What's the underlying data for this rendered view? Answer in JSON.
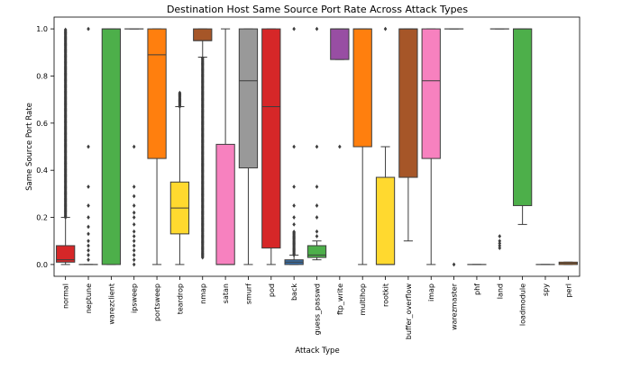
{
  "chart_data": {
    "type": "box",
    "title": "Destination Host Same Source Port Rate Across Attack Types",
    "xlabel": "Attack Type",
    "ylabel": "Same Source Port Rate",
    "ylim": [
      -0.05,
      1.05
    ],
    "yticks": [
      0.0,
      0.2,
      0.4,
      0.6,
      0.8,
      1.0
    ],
    "ytick_labels": [
      "0.0",
      "0.2",
      "0.4",
      "0.6",
      "0.8",
      "1.0"
    ],
    "grid": false,
    "categories": [
      {
        "name": "normal",
        "color": "#d62728",
        "q1": 0.01,
        "median": 0.02,
        "q3": 0.08,
        "whisker_low": 0.0,
        "whisker_high": 0.2,
        "outliers_dense": [
          0.2,
          1.0
        ],
        "outliers": []
      },
      {
        "name": "neptune",
        "color": "#3a6ea5",
        "q1": 0.0,
        "median": 0.0,
        "q3": 0.0,
        "whisker_low": 0.0,
        "whisker_high": 0.0,
        "outliers_dense": [],
        "outliers": [
          0.02,
          0.04,
          0.06,
          0.08,
          0.1,
          0.13,
          0.16,
          0.2,
          0.25,
          0.33,
          0.5,
          1.0
        ]
      },
      {
        "name": "warezclient",
        "color": "#4daf4a",
        "q1": 0.0,
        "median": 1.0,
        "q3": 1.0,
        "whisker_low": 0.0,
        "whisker_high": 1.0,
        "outliers_dense": [],
        "outliers": []
      },
      {
        "name": "ipsweep",
        "color": "#984ea3",
        "q1": 1.0,
        "median": 1.0,
        "q3": 1.0,
        "whisker_low": 1.0,
        "whisker_high": 1.0,
        "outliers_dense": [],
        "outliers": [
          0.0,
          0.02,
          0.04,
          0.06,
          0.08,
          0.1,
          0.12,
          0.14,
          0.17,
          0.2,
          0.22,
          0.25,
          0.29,
          0.33,
          0.5
        ]
      },
      {
        "name": "portsweep",
        "color": "#ff7f0e",
        "q1": 0.45,
        "median": 0.89,
        "q3": 1.0,
        "whisker_low": 0.0,
        "whisker_high": 1.0,
        "outliers_dense": [],
        "outliers": []
      },
      {
        "name": "teardrop",
        "color": "#ffd92f",
        "q1": 0.13,
        "median": 0.24,
        "q3": 0.35,
        "whisker_low": 0.0,
        "whisker_high": 0.67,
        "outliers_dense": [
          0.67,
          0.73
        ],
        "outliers": []
      },
      {
        "name": "nmap",
        "color": "#a65628",
        "q1": 0.95,
        "median": 0.95,
        "q3": 1.0,
        "whisker_low": 0.88,
        "whisker_high": 1.0,
        "outliers_dense": [
          0.03,
          0.88
        ],
        "outliers": []
      },
      {
        "name": "satan",
        "color": "#f781bf",
        "q1": 0.0,
        "median": 0.0,
        "q3": 0.51,
        "whisker_low": 0.0,
        "whisker_high": 1.0,
        "outliers_dense": [],
        "outliers": []
      },
      {
        "name": "smurf",
        "color": "#999999",
        "q1": 0.41,
        "median": 0.78,
        "q3": 1.0,
        "whisker_low": 0.0,
        "whisker_high": 1.0,
        "outliers_dense": [],
        "outliers": []
      },
      {
        "name": "pod",
        "color": "#d62728",
        "q1": 0.07,
        "median": 0.67,
        "q3": 1.0,
        "whisker_low": 0.0,
        "whisker_high": 1.0,
        "outliers_dense": [],
        "outliers": []
      },
      {
        "name": "back",
        "color": "#3a6ea5",
        "q1": 0.0,
        "median": 0.01,
        "q3": 0.02,
        "whisker_low": 0.0,
        "whisker_high": 0.04,
        "outliers_dense": [
          0.04,
          0.14
        ],
        "outliers": [
          0.17,
          0.2,
          0.25,
          0.33,
          0.5,
          1.0
        ]
      },
      {
        "name": "guess_passwd",
        "color": "#4daf4a",
        "q1": 0.03,
        "median": 0.04,
        "q3": 0.08,
        "whisker_low": 0.02,
        "whisker_high": 0.1,
        "outliers_dense": [],
        "outliers": [
          0.12,
          0.14,
          0.2,
          0.25,
          0.33,
          0.5,
          1.0
        ]
      },
      {
        "name": "ftp_write",
        "color": "#984ea3",
        "q1": 0.87,
        "median": 1.0,
        "q3": 1.0,
        "whisker_low": 0.87,
        "whisker_high": 1.0,
        "outliers_dense": [],
        "outliers": [
          0.5
        ]
      },
      {
        "name": "multihop",
        "color": "#ff7f0e",
        "q1": 0.5,
        "median": 1.0,
        "q3": 1.0,
        "whisker_low": 0.0,
        "whisker_high": 1.0,
        "outliers_dense": [],
        "outliers": []
      },
      {
        "name": "rootkit",
        "color": "#ffd92f",
        "q1": 0.0,
        "median": 0.0,
        "q3": 0.37,
        "whisker_low": 0.0,
        "whisker_high": 0.5,
        "outliers_dense": [],
        "outliers": [
          1.0
        ]
      },
      {
        "name": "buffer_overflow",
        "color": "#a65628",
        "q1": 0.37,
        "median": 1.0,
        "q3": 1.0,
        "whisker_low": 0.1,
        "whisker_high": 1.0,
        "outliers_dense": [],
        "outliers": []
      },
      {
        "name": "imap",
        "color": "#f781bf",
        "q1": 0.45,
        "median": 0.78,
        "q3": 1.0,
        "whisker_low": 0.0,
        "whisker_high": 1.0,
        "outliers_dense": [],
        "outliers": []
      },
      {
        "name": "warezmaster",
        "color": "#999999",
        "q1": 1.0,
        "median": 1.0,
        "q3": 1.0,
        "whisker_low": 1.0,
        "whisker_high": 1.0,
        "outliers_dense": [],
        "outliers": [
          0.0
        ]
      },
      {
        "name": "phf",
        "color": "#d62728",
        "q1": 0.0,
        "median": 0.0,
        "q3": 0.0,
        "whisker_low": 0.0,
        "whisker_high": 0.0,
        "outliers_dense": [],
        "outliers": []
      },
      {
        "name": "land",
        "color": "#3a6ea5",
        "q1": 1.0,
        "median": 1.0,
        "q3": 1.0,
        "whisker_low": 1.0,
        "whisker_high": 1.0,
        "outliers_dense": [],
        "outliers": [
          0.07,
          0.08,
          0.09,
          0.1,
          0.12
        ]
      },
      {
        "name": "loadmodule",
        "color": "#4daf4a",
        "q1": 0.25,
        "median": 1.0,
        "q3": 1.0,
        "whisker_low": 0.17,
        "whisker_high": 1.0,
        "outliers_dense": [],
        "outliers": []
      },
      {
        "name": "spy",
        "color": "#984ea3",
        "q1": 0.0,
        "median": 0.0,
        "q3": 0.0,
        "whisker_low": 0.0,
        "whisker_high": 0.0,
        "outliers_dense": [],
        "outliers": []
      },
      {
        "name": "perl",
        "color": "#ff7f0e",
        "q1": 0.0,
        "median": 0.005,
        "q3": 0.01,
        "whisker_low": 0.0,
        "whisker_high": 0.01,
        "outliers_dense": [],
        "outliers": []
      }
    ]
  }
}
